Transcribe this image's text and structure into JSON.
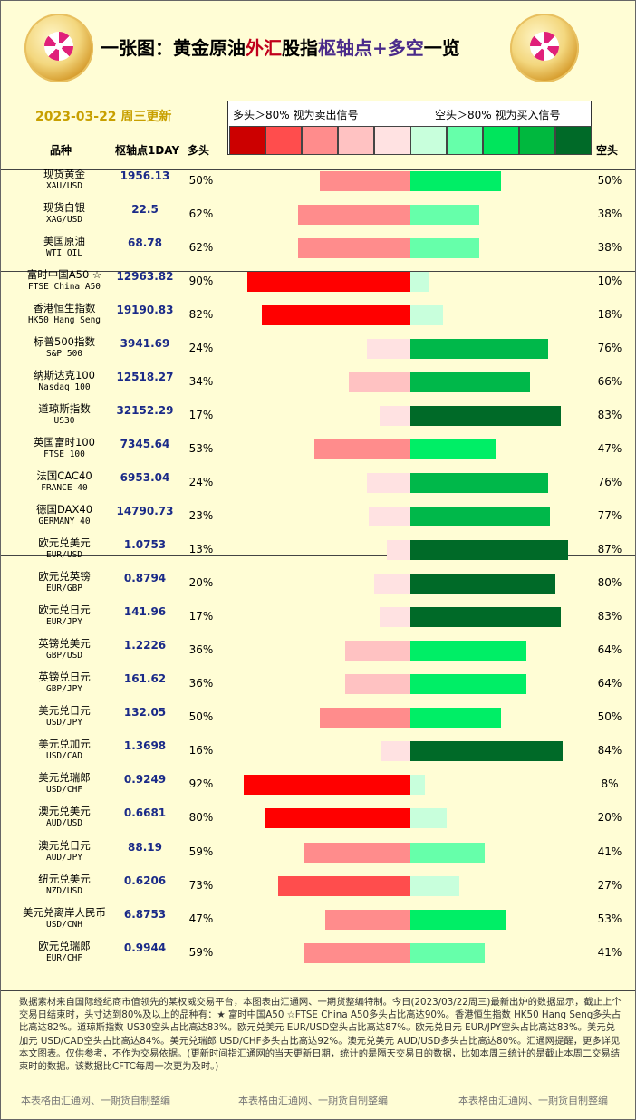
{
  "title": {
    "part1": "一张图：黄金原油",
    "part2": "外汇",
    "part3": "股指",
    "part4": "枢轴点+多空",
    "part5": "一览"
  },
  "date_label": "2023-03-22 周三更新",
  "header": {
    "col_name": "品种",
    "col_pivot": "枢轴点1DAY",
    "col_long": "多头",
    "col_short": "空头"
  },
  "legend": {
    "left_text": "多头＞80% 视为卖出信号",
    "right_text": "空头＞80% 视为买入信号",
    "swatches": [
      "#cc0000",
      "#ff4d4d",
      "#ff8c8c",
      "#ffc2c2",
      "#ffe2e2",
      "#c8ffdc",
      "#66ffaa",
      "#00e55c",
      "#00b83e",
      "#006a28"
    ]
  },
  "colors": {
    "long_scale": [
      "#ffe2e2",
      "#ffc2c2",
      "#ff8c8c",
      "#ff4d4d",
      "#ff0000"
    ],
    "short_scale": [
      "#c8ffdc",
      "#66ffaa",
      "#00ee66",
      "#00b84a",
      "#006a28"
    ]
  },
  "chart_data": {
    "type": "bar",
    "title": "一张图：黄金原油外汇股指枢轴点+多空一览",
    "series": [
      {
        "name": "多头"
      },
      {
        "name": "空头"
      }
    ],
    "rows": [
      {
        "name": "现货黄金",
        "code": "XAU/USD",
        "pivot": "1956.13",
        "long": 50,
        "short": 50
      },
      {
        "name": "现货白银",
        "code": "XAG/USD",
        "pivot": "22.5",
        "long": 62,
        "short": 38
      },
      {
        "name": "美国原油",
        "code": "WTI OIL",
        "pivot": "68.78",
        "long": 62,
        "short": 38
      },
      {
        "name": "富时中国A50 ☆",
        "code": "FTSE China A50",
        "pivot": "12963.82",
        "long": 90,
        "short": 10
      },
      {
        "name": "香港恒生指数",
        "code": "HK50 Hang Seng",
        "pivot": "19190.83",
        "long": 82,
        "short": 18
      },
      {
        "name": "标普500指数",
        "code": "S&P 500",
        "pivot": "3941.69",
        "long": 24,
        "short": 76
      },
      {
        "name": "纳斯达克100",
        "code": "Nasdaq 100",
        "pivot": "12518.27",
        "long": 34,
        "short": 66
      },
      {
        "name": "道琼斯指数",
        "code": "US30",
        "pivot": "32152.29",
        "long": 17,
        "short": 83
      },
      {
        "name": "英国富时100",
        "code": "FTSE 100",
        "pivot": "7345.64",
        "long": 53,
        "short": 47
      },
      {
        "name": "法国CAC40",
        "code": "FRANCE 40",
        "pivot": "6953.04",
        "long": 24,
        "short": 76
      },
      {
        "name": "德国DAX40",
        "code": "GERMANY 40",
        "pivot": "14790.73",
        "long": 23,
        "short": 77
      },
      {
        "name": "欧元兑美元",
        "code": "EUR/USD",
        "pivot": "1.0753",
        "long": 13,
        "short": 87
      },
      {
        "name": "欧元兑英镑",
        "code": "EUR/GBP",
        "pivot": "0.8794",
        "long": 20,
        "short": 80
      },
      {
        "name": "欧元兑日元",
        "code": "EUR/JPY",
        "pivot": "141.96",
        "long": 17,
        "short": 83
      },
      {
        "name": "英镑兑美元",
        "code": "GBP/USD",
        "pivot": "1.2226",
        "long": 36,
        "short": 64
      },
      {
        "name": "英镑兑日元",
        "code": "GBP/JPY",
        "pivot": "161.62",
        "long": 36,
        "short": 64
      },
      {
        "name": "美元兑日元",
        "code": "USD/JPY",
        "pivot": "132.05",
        "long": 50,
        "short": 50
      },
      {
        "name": "美元兑加元",
        "code": "USD/CAD",
        "pivot": "1.3698",
        "long": 16,
        "short": 84
      },
      {
        "name": "美元兑瑞郎",
        "code": "USD/CHF",
        "pivot": "0.9249",
        "long": 92,
        "short": 8
      },
      {
        "name": "澳元兑美元",
        "code": "AUD/USD",
        "pivot": "0.6681",
        "long": 80,
        "short": 20
      },
      {
        "name": "澳元兑日元",
        "code": "AUD/JPY",
        "pivot": "88.19",
        "long": 59,
        "short": 41
      },
      {
        "name": "纽元兑美元",
        "code": "NZD/USD",
        "pivot": "0.6206",
        "long": 73,
        "short": 27
      },
      {
        "name": "美元兑离岸人民币",
        "code": "USD/CNH",
        "pivot": "6.8753",
        "long": 47,
        "short": 53
      },
      {
        "name": "欧元兑瑞郎",
        "code": "EUR/CHF",
        "pivot": "0.9944",
        "long": 59,
        "short": 41
      }
    ]
  },
  "footer": {
    "text": "数据素材来自国际经纪商市值领先的某权威交易平台，本图表由汇通网、一期货整编特制。今日(2023/03/22周三)最新出炉的数据显示，截止上个交易日结束时，头寸达到80%及以上的品种有：★ 富时中国A50 ☆FTSE China A50多头占比高达90%。香港恒生指数 HK50 Hang Seng多头占比高达82%。道琼斯指数 US30空头占比高达83%。欧元兑美元 EUR/USD空头占比高达87%。欧元兑日元 EUR/JPY空头占比高达83%。美元兑加元 USD/CAD空头占比高达84%。美元兑瑞郎 USD/CHF多头占比高达92%。澳元兑美元 AUD/USD多头占比高达80%。汇通网提醒，更多详见本文图表。仅供参考，不作为交易依据。(更新时间指汇通网的当天更新日期，统计的是隔天交易日的数据，比如本周三统计的是截止本周二交易结束时的数据。该数据比CFTC每周一次更为及时。)",
    "mark": "本表格由汇通网、一期货自制整编"
  }
}
